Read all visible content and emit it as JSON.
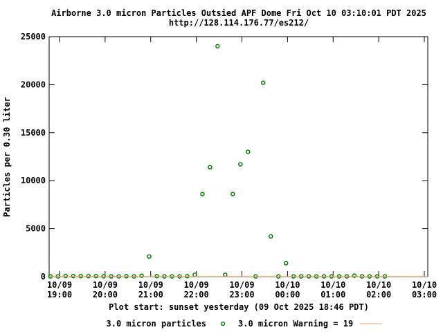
{
  "chart_data": {
    "type": "scatter",
    "title": "Airborne 3.0 micron Particles Outsied APF Dome Fri Oct 10 03:10:01 PDT 2025",
    "subtitle": "http://128.114.176.77/es212/",
    "ylabel": "Particles per 0.30 liter",
    "xlabel": "Plot start: sunset yesterday (09 Oct 2025 18:46 PDT)",
    "xlim": [
      0,
      480
    ],
    "ylim": [
      0,
      25000
    ],
    "y_ticks": [
      {
        "value": 0,
        "label": "0"
      },
      {
        "value": 5000,
        "label": "5000"
      },
      {
        "value": 10000,
        "label": "10000"
      },
      {
        "value": 15000,
        "label": "15000"
      },
      {
        "value": 20000,
        "label": "20000"
      },
      {
        "value": 25000,
        "label": "25000"
      }
    ],
    "x_ticks": [
      {
        "value": 0,
        "date": "10/09",
        "time": "19:00"
      },
      {
        "value": 60,
        "date": "10/09",
        "time": "20:00"
      },
      {
        "value": 120,
        "date": "10/09",
        "time": "21:00"
      },
      {
        "value": 180,
        "date": "10/09",
        "time": "22:00"
      },
      {
        "value": 240,
        "date": "10/09",
        "time": "23:00"
      },
      {
        "value": 300,
        "date": "10/10",
        "time": "00:00"
      },
      {
        "value": 360,
        "date": "10/10",
        "time": "01:00"
      },
      {
        "value": 420,
        "date": "10/10",
        "time": "02:00"
      },
      {
        "value": 480,
        "date": "10/10",
        "time": "03:00"
      }
    ],
    "series": [
      {
        "name": "3.0 micron particles",
        "color": "#008000",
        "marker": "circle",
        "points": [
          [
            -12,
            30
          ],
          [
            -2,
            30
          ],
          [
            8,
            80
          ],
          [
            18,
            60
          ],
          [
            28,
            60
          ],
          [
            38,
            60
          ],
          [
            48,
            60
          ],
          [
            58,
            30
          ],
          [
            68,
            30
          ],
          [
            78,
            30
          ],
          [
            88,
            50
          ],
          [
            98,
            30
          ],
          [
            108,
            100
          ],
          [
            118,
            2100
          ],
          [
            128,
            50
          ],
          [
            138,
            30
          ],
          [
            148,
            30
          ],
          [
            158,
            30
          ],
          [
            168,
            50
          ],
          [
            178,
            200
          ],
          [
            188,
            8600
          ],
          [
            198,
            11400
          ],
          [
            208,
            24000
          ],
          [
            218,
            200
          ],
          [
            228,
            8600
          ],
          [
            238,
            11700
          ],
          [
            248,
            13000
          ],
          [
            258,
            30
          ],
          [
            268,
            20200
          ],
          [
            278,
            4200
          ],
          [
            288,
            30
          ],
          [
            298,
            1400
          ],
          [
            308,
            30
          ],
          [
            318,
            30
          ],
          [
            328,
            30
          ],
          [
            338,
            30
          ],
          [
            348,
            30
          ],
          [
            358,
            30
          ],
          [
            368,
            30
          ],
          [
            378,
            30
          ],
          [
            388,
            100
          ],
          [
            398,
            30
          ],
          [
            408,
            30
          ],
          [
            418,
            30
          ],
          [
            428,
            30
          ]
        ]
      },
      {
        "name": "3.0 micron Warning = 19",
        "color": "#f4a460",
        "type": "line",
        "value": 19
      }
    ],
    "legend": "bottom-center",
    "grid": false
  }
}
